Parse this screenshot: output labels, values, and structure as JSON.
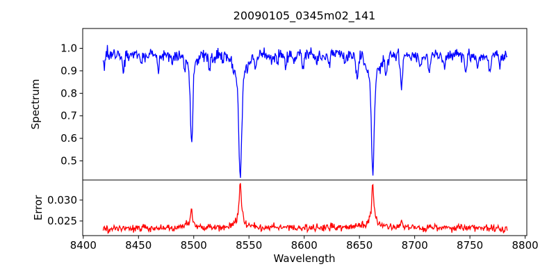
{
  "figure": {
    "background": "#ffffff",
    "frame_color": "#000000"
  },
  "chart_data": {
    "type": "line",
    "title": "20090105_0345m02_141",
    "xlabel": "Wavelength",
    "xlim": [
      8399.5,
      8801.5
    ],
    "xticks": [
      8400,
      8450,
      8500,
      8550,
      8600,
      8650,
      8700,
      8750,
      8800
    ],
    "xtick_labels": [
      "8400",
      "8450",
      "8500",
      "8550",
      "8600",
      "8650",
      "8700",
      "8750",
      "8800"
    ],
    "x_data_range": [
      8418,
      8784
    ],
    "sample_step": 0.55,
    "noise_seed": 7,
    "panels": [
      {
        "name": "spectrum",
        "ylabel": "Spectrum",
        "line_color": "#0000ff",
        "ylim": [
          0.415,
          1.088
        ],
        "yticks": [
          0.5,
          0.6,
          0.7,
          0.8,
          0.9,
          1.0
        ],
        "ytick_labels": [
          "0.5",
          "0.6",
          "0.7",
          "0.8",
          "0.9",
          "1.0"
        ],
        "continuum": 0.97,
        "noise_sigma": 0.015,
        "absorption_lines": [
          {
            "center": 8498.0,
            "depth": 0.335,
            "sigma": 1.1,
            "wing_depth": 0.055,
            "wing_sigma": 4.5
          },
          {
            "center": 8542.1,
            "depth": 0.435,
            "sigma": 1.35,
            "wing_depth": 0.1,
            "wing_sigma": 5.5
          },
          {
            "center": 8662.1,
            "depth": 0.425,
            "sigma": 1.3,
            "wing_depth": 0.095,
            "wing_sigma": 5.5
          },
          {
            "center": 8419,
            "depth": 0.045,
            "sigma": 0.8
          },
          {
            "center": 8436,
            "depth": 0.075,
            "sigma": 0.9
          },
          {
            "center": 8452,
            "depth": 0.04,
            "sigma": 0.8
          },
          {
            "center": 8468,
            "depth": 0.062,
            "sigma": 0.9
          },
          {
            "center": 8481,
            "depth": 0.032,
            "sigma": 0.8
          },
          {
            "center": 8492,
            "depth": 0.03,
            "sigma": 0.7
          },
          {
            "center": 8514,
            "depth": 0.078,
            "sigma": 1.0
          },
          {
            "center": 8526,
            "depth": 0.036,
            "sigma": 0.8
          },
          {
            "center": 8556,
            "depth": 0.06,
            "sigma": 0.9
          },
          {
            "center": 8571,
            "depth": 0.036,
            "sigma": 0.8
          },
          {
            "center": 8583,
            "depth": 0.046,
            "sigma": 0.9
          },
          {
            "center": 8599,
            "depth": 0.052,
            "sigma": 0.9
          },
          {
            "center": 8611,
            "depth": 0.036,
            "sigma": 0.8
          },
          {
            "center": 8622,
            "depth": 0.046,
            "sigma": 0.9
          },
          {
            "center": 8637,
            "depth": 0.04,
            "sigma": 0.8
          },
          {
            "center": 8648,
            "depth": 0.09,
            "sigma": 1.0
          },
          {
            "center": 8674,
            "depth": 0.082,
            "sigma": 1.0
          },
          {
            "center": 8688,
            "depth": 0.135,
            "sigma": 1.1
          },
          {
            "center": 8705,
            "depth": 0.06,
            "sigma": 0.9
          },
          {
            "center": 8713,
            "depth": 0.078,
            "sigma": 1.0
          },
          {
            "center": 8727,
            "depth": 0.055,
            "sigma": 0.9
          },
          {
            "center": 8746,
            "depth": 0.08,
            "sigma": 1.0
          },
          {
            "center": 8757,
            "depth": 0.055,
            "sigma": 0.9
          },
          {
            "center": 8768,
            "depth": 0.075,
            "sigma": 1.0
          },
          {
            "center": 8777,
            "depth": 0.042,
            "sigma": 0.8
          }
        ]
      },
      {
        "name": "error",
        "ylabel": "Error",
        "line_color": "#ff0000",
        "ylim": [
          0.0215,
          0.0348
        ],
        "yticks": [
          0.025,
          0.03
        ],
        "ytick_labels": [
          "0.025",
          "0.030"
        ],
        "baseline": 0.0233,
        "noise_sigma": 0.00045,
        "peaks": [
          {
            "center": 8498.0,
            "amp": 0.0045,
            "gamma": 0.9,
            "wing_amp": 0.0008,
            "wing_gamma": 5
          },
          {
            "center": 8542.1,
            "amp": 0.01,
            "gamma": 1.1,
            "wing_amp": 0.0014,
            "wing_gamma": 7
          },
          {
            "center": 8662.1,
            "amp": 0.0095,
            "gamma": 1.0,
            "wing_amp": 0.0013,
            "wing_gamma": 7
          },
          {
            "center": 8688,
            "amp": 0.0013,
            "gamma": 1.5
          },
          {
            "center": 8436,
            "amp": 0.0005,
            "gamma": 1.2
          },
          {
            "center": 8514,
            "amp": 0.0005,
            "gamma": 1.2
          },
          {
            "center": 8648,
            "amp": 0.0006,
            "gamma": 1.2
          },
          {
            "center": 8713,
            "amp": 0.0005,
            "gamma": 1.2
          },
          {
            "center": 8746,
            "amp": 0.0005,
            "gamma": 1.2
          }
        ]
      }
    ]
  }
}
